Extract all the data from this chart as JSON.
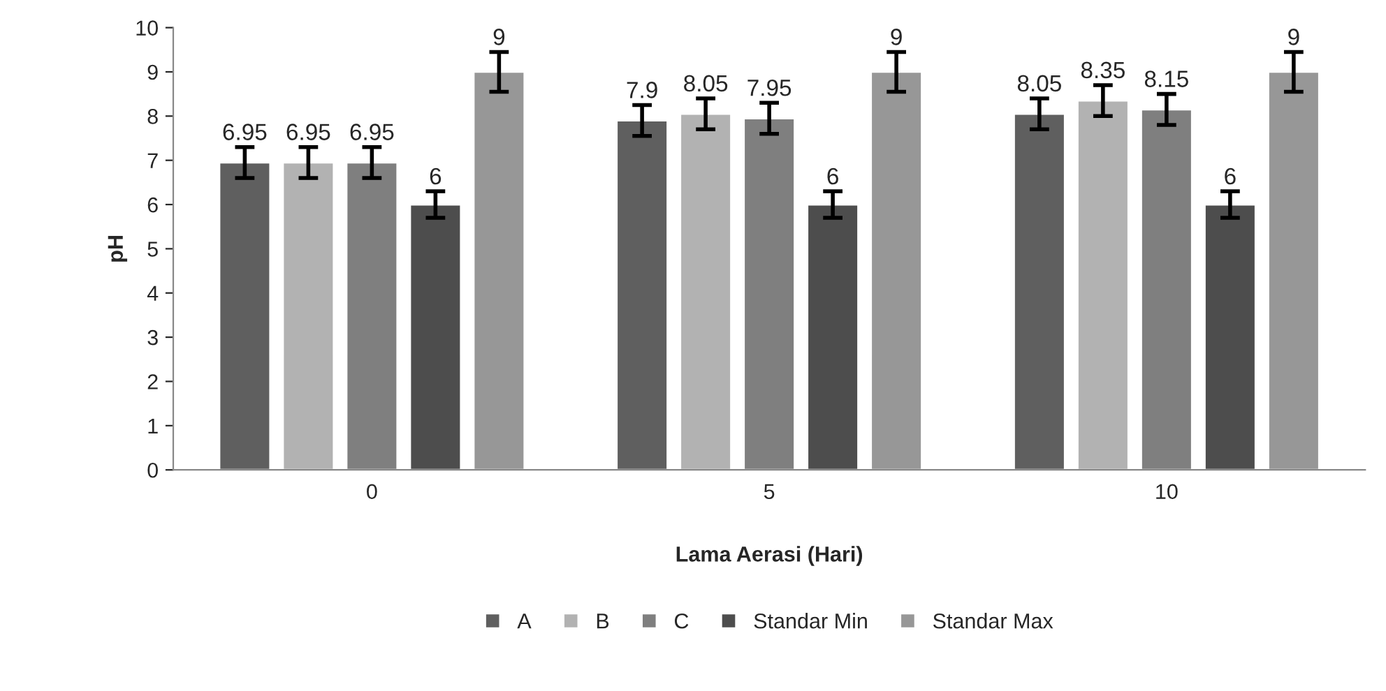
{
  "chart_data": {
    "type": "bar",
    "xlabel": "Lama Aerasi (Hari)",
    "ylabel": "pH",
    "categories": [
      "0",
      "5",
      "10"
    ],
    "series": [
      {
        "name": "A",
        "color": "#5f5f5f",
        "values": [
          6.95,
          7.9,
          8.05
        ],
        "errors": [
          0.35,
          0.35,
          0.35
        ]
      },
      {
        "name": "B",
        "color": "#b2b2b2",
        "values": [
          6.95,
          8.05,
          8.35
        ],
        "errors": [
          0.35,
          0.35,
          0.35
        ]
      },
      {
        "name": "C",
        "color": "#7f7f7f",
        "values": [
          6.95,
          7.95,
          8.15
        ],
        "errors": [
          0.35,
          0.35,
          0.35
        ]
      },
      {
        "name": "Standar Min",
        "color": "#4d4d4d",
        "values": [
          6,
          6,
          6
        ],
        "errors": [
          0.3,
          0.3,
          0.3
        ]
      },
      {
        "name": "Standar Max",
        "color": "#979797",
        "values": [
          9,
          9,
          9
        ],
        "errors": [
          0.45,
          0.45,
          0.45
        ]
      }
    ],
    "ylim": [
      0,
      10
    ],
    "yticks": [
      0,
      1,
      2,
      3,
      4,
      5,
      6,
      7,
      8,
      9,
      10
    ],
    "data_labels": true,
    "legend": "bottom",
    "grid": false
  }
}
